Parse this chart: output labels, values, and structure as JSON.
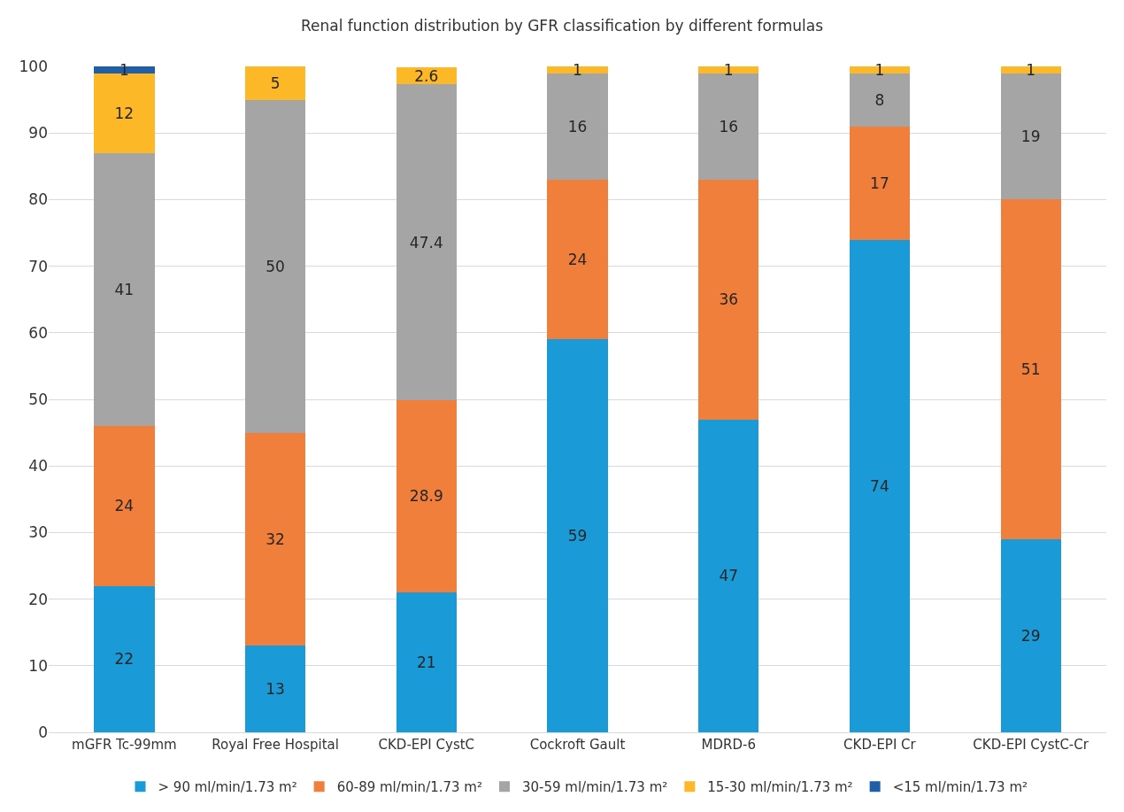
{
  "chart_data": {
    "type": "bar",
    "title": "Renal function distribution by GFR classification by different formulas",
    "categories": [
      "mGFR Tc-99mm",
      "Royal Free Hospital",
      "CKD-EPI CystC",
      "Cockroft Gault",
      "MDRD-6",
      "CKD-EPI Cr",
      "CKD-EPI CystC-Cr"
    ],
    "series": [
      {
        "name": "> 90 ml/min/1.73 m²",
        "color": "#1a9ad6",
        "values": [
          22,
          13,
          21,
          59,
          47,
          74,
          29
        ]
      },
      {
        "name": "60-89 ml/min/1.73 m²",
        "color": "#f07f3c",
        "values": [
          24,
          32,
          28.9,
          24,
          36,
          17,
          51
        ]
      },
      {
        "name": "30-59 ml/min/1.73 m²",
        "color": "#a5a5a5",
        "values": [
          41,
          50,
          47.4,
          16,
          16,
          8,
          19
        ]
      },
      {
        "name": "15-30 ml/min/1.73 m²",
        "color": "#fdb827",
        "values": [
          12,
          5,
          2.6,
          1,
          1,
          1,
          1
        ]
      },
      {
        "name": "<15 ml/min/1.73 m²",
        "color": "#1f5fa8",
        "values": [
          1,
          null,
          null,
          null,
          null,
          null,
          null
        ]
      }
    ],
    "stacked": true,
    "data_labels": true,
    "ylim": [
      0,
      100
    ],
    "yticks": [
      0,
      10,
      20,
      30,
      40,
      50,
      60,
      70,
      80,
      90,
      100
    ],
    "grid": "y",
    "legend": "bottom"
  }
}
